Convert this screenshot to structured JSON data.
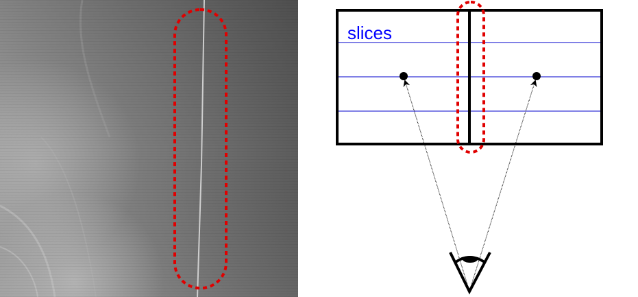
{
  "figure": {
    "left_panel": {
      "kind": "grayscale-scan-image",
      "highlight_color": "#e00000"
    },
    "right_panel": {
      "slices_label": "slices",
      "slice_line_color": "#0000cc",
      "label_color": "#0000ff",
      "box_color": "#000000",
      "highlight_color": "#e00000",
      "observer_icon": "eye-icon"
    }
  }
}
